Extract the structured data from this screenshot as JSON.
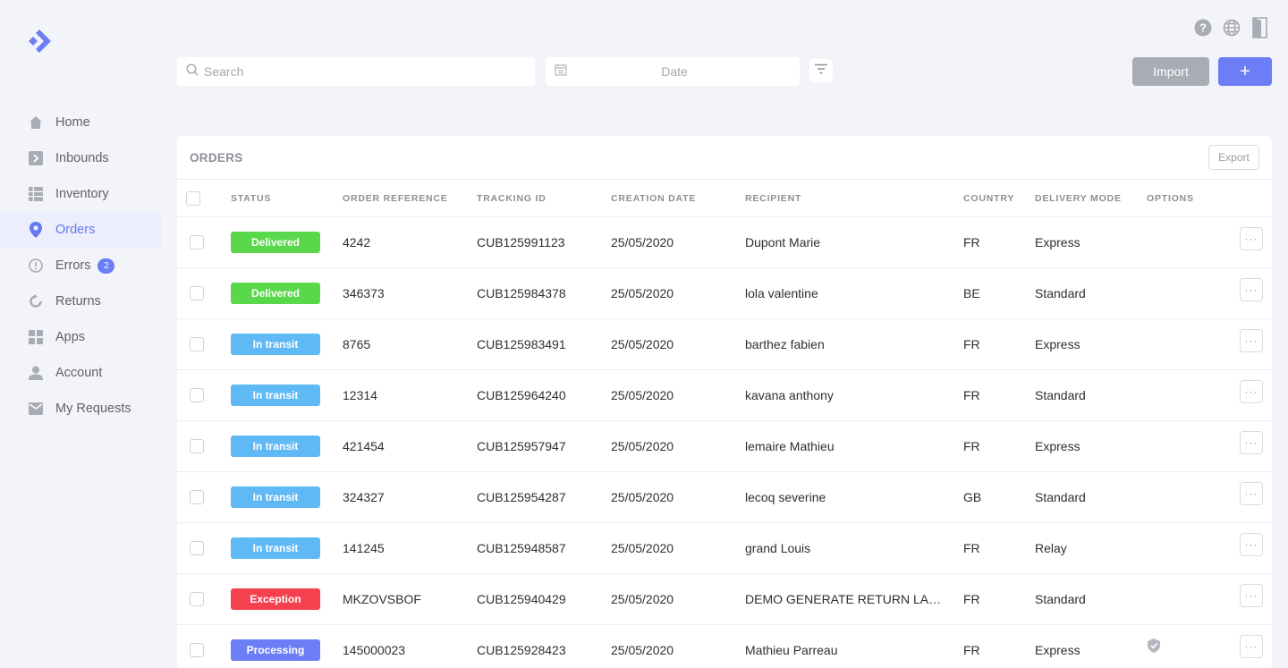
{
  "colors": {
    "accent": "#6b7ef5",
    "delivered": "#5ad84b",
    "in_transit": "#5fb9f5",
    "exception": "#f5404f",
    "processing": "#6b7ef5"
  },
  "sidebar": {
    "items": [
      {
        "label": "Home",
        "icon": "home-icon"
      },
      {
        "label": "Inbounds",
        "icon": "inbound-icon"
      },
      {
        "label": "Inventory",
        "icon": "grid-icon"
      },
      {
        "label": "Orders",
        "icon": "location-pin-icon",
        "active": true
      },
      {
        "label": "Errors",
        "icon": "alert-circle-icon",
        "badge": "2"
      },
      {
        "label": "Returns",
        "icon": "return-icon"
      },
      {
        "label": "Apps",
        "icon": "apps-icon"
      },
      {
        "label": "Account",
        "icon": "user-icon"
      },
      {
        "label": "My Requests",
        "icon": "mail-icon"
      }
    ]
  },
  "toolbar": {
    "search_placeholder": "Search",
    "date_placeholder": "Date",
    "import_label": "Import",
    "add_label": "+"
  },
  "orders": {
    "title": "ORDERS",
    "export_label": "Export",
    "columns": [
      "STATUS",
      "ORDER REFERENCE",
      "TRACKING ID",
      "CREATION DATE",
      "RECIPIENT",
      "COUNTRY",
      "DELIVERY MODE",
      "OPTIONS"
    ],
    "rows": [
      {
        "status": "Delivered",
        "kind": "delivered",
        "ref": "4242",
        "tracking": "CUB125991123",
        "date": "25/05/2020",
        "recipient": "Dupont Marie",
        "country": "FR",
        "mode": "Express"
      },
      {
        "status": "Delivered",
        "kind": "delivered",
        "ref": "346373",
        "tracking": "CUB125984378",
        "date": "25/05/2020",
        "recipient": "lola valentine",
        "country": "BE",
        "mode": "Standard"
      },
      {
        "status": "In transit",
        "kind": "in_transit",
        "ref": "8765",
        "tracking": "CUB125983491",
        "date": "25/05/2020",
        "recipient": "barthez fabien",
        "country": "FR",
        "mode": "Express"
      },
      {
        "status": "In transit",
        "kind": "in_transit",
        "ref": "12314",
        "tracking": "CUB125964240",
        "date": "25/05/2020",
        "recipient": "kavana anthony",
        "country": "FR",
        "mode": "Standard"
      },
      {
        "status": "In transit",
        "kind": "in_transit",
        "ref": "421454",
        "tracking": "CUB125957947",
        "date": "25/05/2020",
        "recipient": "lemaire Mathieu",
        "country": "FR",
        "mode": "Express"
      },
      {
        "status": "In transit",
        "kind": "in_transit",
        "ref": "324327",
        "tracking": "CUB125954287",
        "date": "25/05/2020",
        "recipient": "lecoq severine",
        "country": "GB",
        "mode": "Standard"
      },
      {
        "status": "In transit",
        "kind": "in_transit",
        "ref": "141245",
        "tracking": "CUB125948587",
        "date": "25/05/2020",
        "recipient": "grand Louis",
        "country": "FR",
        "mode": "Relay"
      },
      {
        "status": "Exception",
        "kind": "exception",
        "ref": "MKZOVSBOF",
        "tracking": "CUB125940429",
        "date": "25/05/2020",
        "recipient": "DEMO GENERATE RETURN LAB...",
        "country": "FR",
        "mode": "Standard"
      },
      {
        "status": "Processing",
        "kind": "processing",
        "ref": "145000023",
        "tracking": "CUB125928423",
        "date": "25/05/2020",
        "recipient": "Mathieu Parreau",
        "country": "FR",
        "mode": "Express",
        "shield": true
      }
    ]
  }
}
